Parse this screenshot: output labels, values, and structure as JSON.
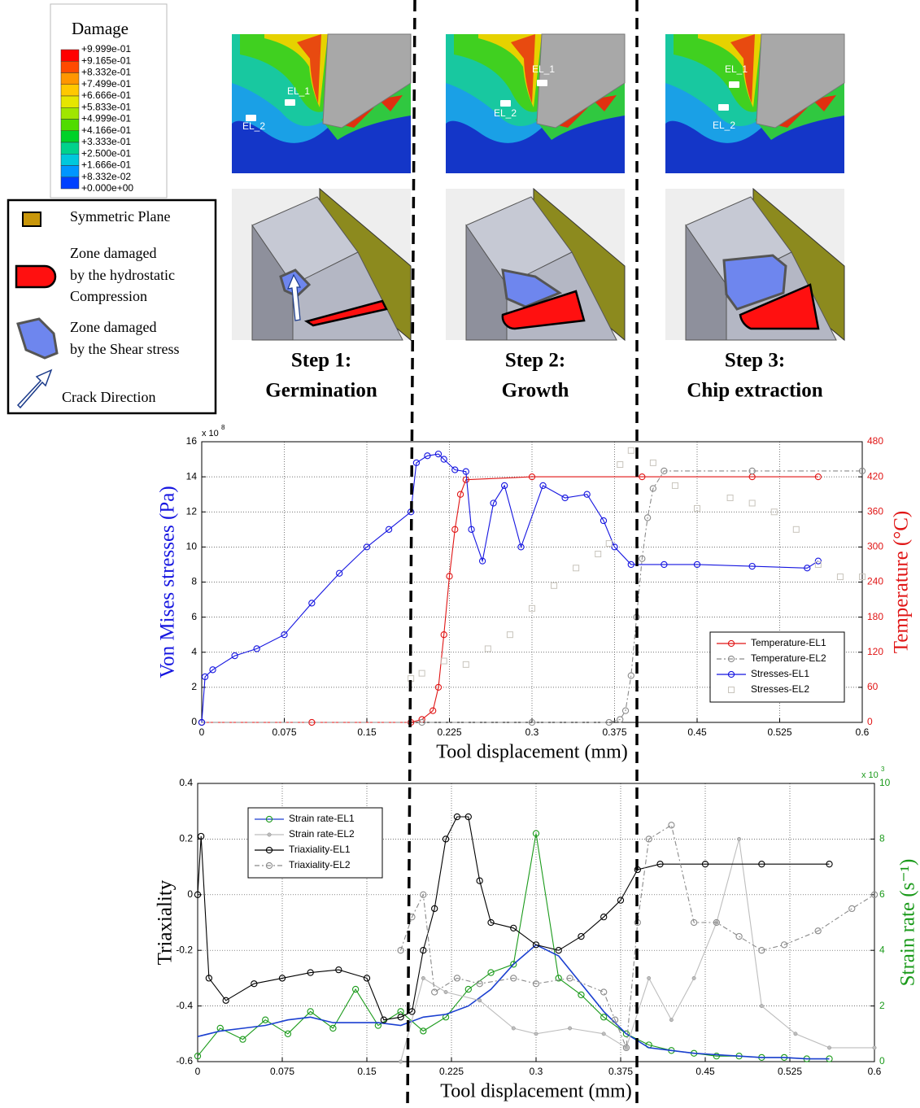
{
  "damage_legend": {
    "title": "Damage",
    "labels": [
      "+9.999e-01",
      "+9.165e-01",
      "+8.332e-01",
      "+7.499e-01",
      "+6.666e-01",
      "+5.833e-01",
      "+4.999e-01",
      "+4.166e-01",
      "+3.333e-01",
      "+2.500e-01",
      "+1.666e-01",
      "+8.332e-02",
      "+0.000e+00"
    ],
    "colors": [
      "#ff0000",
      "#ff4a00",
      "#ff9600",
      "#ffc800",
      "#e6e600",
      "#a0e600",
      "#50dc00",
      "#00d228",
      "#00d28c",
      "#00c8dc",
      "#0096ff",
      "#0040ff"
    ]
  },
  "symbol_legend": {
    "entries": [
      {
        "lines": [
          "Symmetric Plane"
        ]
      },
      {
        "lines": [
          "Zone damaged",
          "by  the hydrostatic",
          "Compression"
        ]
      },
      {
        "lines": [
          "Zone damaged",
          "by the Shear stress"
        ]
      },
      {
        "lines": [
          "Crack Direction"
        ]
      }
    ]
  },
  "panels": [
    {
      "step": "Step 1:",
      "stage": "Germination",
      "element_labels": [
        "EL_1",
        "EL_2"
      ]
    },
    {
      "step": "Step 2:",
      "stage": "Growth",
      "element_labels": [
        "EL_1",
        "EL_2"
      ]
    },
    {
      "step": "Step 3:",
      "stage": "Chip extraction",
      "element_labels": [
        "EL_1",
        "EL_2"
      ]
    }
  ],
  "chart_data": [
    {
      "type": "line",
      "xlabel": "Tool displacement (mm)",
      "ylabel": "Von Mises stresses (Pa)",
      "ylabel_color": "#1515e0",
      "y2label": "Temperature (°C)",
      "y2label_color": "#e01515",
      "y_multiplier": {
        "base": "x 10",
        "exponent": "8"
      },
      "xlim": [
        0,
        0.6
      ],
      "xticks": [
        0,
        0.075,
        0.15,
        0.225,
        0.3,
        0.375,
        0.45,
        0.525,
        0.6
      ],
      "ylim": [
        0,
        16
      ],
      "yticks": [
        0,
        2,
        4,
        6,
        8,
        10,
        12,
        14,
        16
      ],
      "y2lim": [
        0,
        480
      ],
      "y2ticks": [
        0,
        60,
        120,
        180,
        240,
        300,
        360,
        420,
        480
      ],
      "grid": true,
      "legend": "lower right",
      "series": [
        {
          "name": "Temperature-EL1",
          "color": "#e01515",
          "axis": "y2",
          "marker": "circle",
          "dash": "solid",
          "x": [
            0,
            0.1,
            0.19,
            0.2,
            0.21,
            0.215,
            0.22,
            0.225,
            0.23,
            0.235,
            0.24,
            0.3,
            0.4,
            0.5,
            0.56
          ],
          "values": [
            0,
            0,
            0,
            5,
            20,
            60,
            150,
            250,
            330,
            390,
            415,
            420,
            420,
            420,
            420
          ]
        },
        {
          "name": "Temperature-EL2",
          "color": "#8a8a8a",
          "axis": "y2",
          "marker": "circle",
          "dash": "dashdot",
          "x": [
            0,
            0.2,
            0.3,
            0.37,
            0.38,
            0.385,
            0.39,
            0.395,
            0.4,
            0.405,
            0.41,
            0.42,
            0.5,
            0.6
          ],
          "values": [
            0,
            0,
            0,
            0,
            5,
            20,
            80,
            180,
            280,
            350,
            400,
            430,
            430,
            430
          ]
        },
        {
          "name": "Stresses-EL1",
          "color": "#1515e0",
          "marker": "circle",
          "dash": "solid",
          "x": [
            0,
            0.003,
            0.01,
            0.03,
            0.05,
            0.075,
            0.1,
            0.125,
            0.15,
            0.17,
            0.19,
            0.195,
            0.205,
            0.215,
            0.22,
            0.23,
            0.24,
            0.245,
            0.255,
            0.265,
            0.275,
            0.29,
            0.31,
            0.33,
            0.35,
            0.365,
            0.375,
            0.39,
            0.42,
            0.45,
            0.5,
            0.55,
            0.56
          ],
          "values": [
            0,
            2.6,
            3,
            3.8,
            4.2,
            5,
            6.8,
            8.5,
            10,
            11,
            12,
            14.8,
            15.2,
            15.3,
            15,
            14.4,
            14.3,
            11,
            9.2,
            12.5,
            13.5,
            10,
            13.5,
            12.8,
            13,
            11.5,
            10,
            9,
            9,
            9,
            8.9,
            8.8,
            9.2
          ]
        },
        {
          "name": "Stresses-EL2",
          "color": "#c8c4bc",
          "marker": "square",
          "dash": "none",
          "x": [
            0.19,
            0.2,
            0.22,
            0.24,
            0.26,
            0.28,
            0.3,
            0.32,
            0.34,
            0.36,
            0.37,
            0.38,
            0.39,
            0.41,
            0.43,
            0.45,
            0.48,
            0.5,
            0.52,
            0.54,
            0.56,
            0.58,
            0.6
          ],
          "values": [
            2.5,
            2.8,
            3.5,
            3.3,
            4.2,
            5,
            6.5,
            7.8,
            8.8,
            9.6,
            10.2,
            14.7,
            15.5,
            14.8,
            13.5,
            12.2,
            12.8,
            12.5,
            12,
            11,
            9,
            8.3,
            8.3
          ]
        }
      ]
    },
    {
      "type": "line",
      "xlabel": "Tool displacement (mm)",
      "ylabel": "Triaxiality",
      "ylabel_color": "#000000",
      "y2label": "Strain rate  (s⁻¹)",
      "y2label_color": "#1a9a1a",
      "y2_multiplier": {
        "base": "x 10",
        "exponent": "3"
      },
      "xlim": [
        0,
        0.6
      ],
      "xticks": [
        0,
        0.075,
        0.15,
        0.225,
        0.3,
        0.375,
        0.45,
        0.525,
        0.6
      ],
      "ylim": [
        -0.6,
        0.4
      ],
      "yticks": [
        -0.6,
        -0.4,
        -0.2,
        0,
        0.2,
        0.4
      ],
      "y2lim": [
        0,
        10
      ],
      "y2ticks": [
        0,
        2,
        4,
        6,
        8,
        10
      ],
      "grid": true,
      "legend": "upper left",
      "series": [
        {
          "name": "Strain rate-EL1",
          "color": "#1a9a1a",
          "trend_color": "#1a3fd0",
          "axis": "y2",
          "marker": "circle",
          "dash": "solid",
          "x": [
            0,
            0.02,
            0.04,
            0.06,
            0.08,
            0.1,
            0.12,
            0.14,
            0.16,
            0.18,
            0.2,
            0.22,
            0.24,
            0.26,
            0.28,
            0.3,
            0.32,
            0.34,
            0.36,
            0.38,
            0.4,
            0.42,
            0.44,
            0.46,
            0.48,
            0.5,
            0.52,
            0.54,
            0.56
          ],
          "values": [
            0.2,
            1.2,
            0.8,
            1.5,
            1,
            1.8,
            1.2,
            2.6,
            1.3,
            1.8,
            1.1,
            1.6,
            2.6,
            3.2,
            3.5,
            8.2,
            3,
            2.4,
            1.6,
            1,
            0.6,
            0.4,
            0.3,
            0.2,
            0.2,
            0.15,
            0.15,
            0.1,
            0.1
          ],
          "trend": [
            0.9,
            1.1,
            1.2,
            1.3,
            1.5,
            1.6,
            1.4,
            1.4,
            1.4,
            1.3,
            1.6,
            1.7,
            2,
            2.6,
            3.5,
            4.2,
            3.8,
            2.8,
            1.8,
            1,
            0.5,
            0.4,
            0.3,
            0.25,
            0.2,
            0.15,
            0.15,
            0.1,
            0.1
          ]
        },
        {
          "name": "Strain rate-EL2",
          "color": "#bdbdbd",
          "axis": "y2",
          "marker": "dot",
          "dash": "solid",
          "x": [
            0.18,
            0.2,
            0.22,
            0.25,
            0.28,
            0.3,
            0.33,
            0.36,
            0.38,
            0.4,
            0.42,
            0.44,
            0.46,
            0.48,
            0.5,
            0.53,
            0.56,
            0.6
          ],
          "values": [
            0,
            3,
            2.5,
            2.2,
            1.2,
            1,
            1.2,
            1,
            0.5,
            3,
            1.5,
            3,
            5,
            8,
            2,
            1,
            0.5,
            0.5
          ]
        },
        {
          "name": "Triaxiality-EL1",
          "color": "#000000",
          "marker": "circle",
          "dash": "solid",
          "x": [
            0,
            0.003,
            0.01,
            0.025,
            0.05,
            0.075,
            0.1,
            0.125,
            0.15,
            0.165,
            0.18,
            0.19,
            0.2,
            0.21,
            0.22,
            0.23,
            0.24,
            0.25,
            0.26,
            0.28,
            0.3,
            0.32,
            0.34,
            0.36,
            0.375,
            0.39,
            0.41,
            0.45,
            0.5,
            0.56
          ],
          "values": [
            0,
            0.21,
            -0.3,
            -0.38,
            -0.32,
            -0.3,
            -0.28,
            -0.27,
            -0.3,
            -0.45,
            -0.44,
            -0.42,
            -0.2,
            -0.05,
            0.2,
            0.28,
            0.28,
            0.05,
            -0.1,
            -0.12,
            -0.18,
            -0.2,
            -0.15,
            -0.08,
            -0.02,
            0.09,
            0.11,
            0.11,
            0.11,
            0.11
          ]
        },
        {
          "name": "Triaxiality-EL2",
          "color": "#8a8a8a",
          "marker": "circle",
          "dash": "dashdot",
          "x": [
            0.18,
            0.19,
            0.2,
            0.21,
            0.23,
            0.25,
            0.28,
            0.3,
            0.33,
            0.36,
            0.37,
            0.38,
            0.39,
            0.4,
            0.42,
            0.44,
            0.46,
            0.48,
            0.5,
            0.52,
            0.55,
            0.58,
            0.6
          ],
          "values": [
            -0.2,
            -0.08,
            0,
            -0.35,
            -0.3,
            -0.32,
            -0.3,
            -0.32,
            -0.3,
            -0.35,
            -0.45,
            -0.55,
            -0.1,
            0.2,
            0.25,
            -0.1,
            -0.1,
            -0.15,
            -0.2,
            -0.18,
            -0.13,
            -0.05,
            0
          ]
        }
      ]
    }
  ]
}
